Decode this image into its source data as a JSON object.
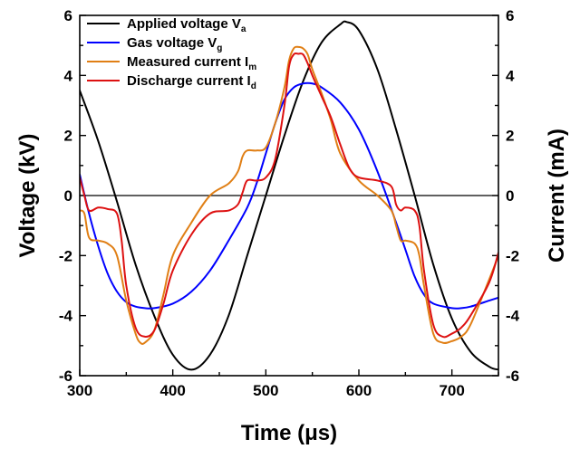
{
  "chart_data": {
    "type": "line",
    "xlabel": "Time (μs)",
    "ylabel_left": "Voltage (kV)",
    "ylabel_right": "Current (mA)",
    "xlim": [
      300,
      750
    ],
    "ylim_left": [
      -6,
      6
    ],
    "ylim_right": [
      -6,
      6
    ],
    "x_ticks": [
      300,
      400,
      500,
      600,
      700
    ],
    "y_ticks_left": [
      -6,
      -4,
      -2,
      0,
      2,
      4,
      6
    ],
    "y_ticks_right": [
      -6,
      -4,
      -2,
      0,
      2,
      4,
      6
    ],
    "zero_line": true,
    "legend_position": "top-left",
    "series": [
      {
        "name": "Applied voltage V",
        "subscript": "a",
        "color": "#000000",
        "axis": "left",
        "x": [
          300,
          320,
          340,
          360,
          380,
          400,
          420,
          440,
          460,
          480,
          500,
          520,
          540,
          560,
          580,
          587,
          600,
          620,
          640,
          660,
          680,
          700,
          720,
          740,
          750
        ],
        "y": [
          3.5,
          1.8,
          -0.2,
          -2.3,
          -4.0,
          -5.3,
          -5.8,
          -5.3,
          -4.0,
          -2.0,
          0.0,
          2.0,
          3.8,
          5.1,
          5.7,
          5.78,
          5.5,
          4.2,
          2.2,
          0.0,
          -2.3,
          -4.1,
          -5.2,
          -5.7,
          -5.8
        ]
      },
      {
        "name": "Gas voltage V",
        "subscript": "g",
        "color": "#0000ff",
        "axis": "left",
        "x": [
          300,
          310,
          320,
          330,
          340,
          350,
          360,
          370,
          380,
          400,
          420,
          440,
          460,
          480,
          490,
          500,
          510,
          520,
          530,
          540,
          550,
          560,
          580,
          600,
          620,
          640,
          650,
          660,
          670,
          680,
          700,
          710,
          720,
          740,
          750
        ],
        "y": [
          0.7,
          -0.6,
          -1.7,
          -2.6,
          -3.2,
          -3.55,
          -3.7,
          -3.75,
          -3.75,
          -3.6,
          -3.2,
          -2.5,
          -1.5,
          -0.4,
          0.4,
          1.4,
          2.4,
          3.2,
          3.6,
          3.73,
          3.73,
          3.6,
          3.1,
          2.2,
          0.8,
          -0.9,
          -1.8,
          -2.7,
          -3.3,
          -3.6,
          -3.75,
          -3.75,
          -3.7,
          -3.5,
          -3.4
        ]
      },
      {
        "name": "Measured current I",
        "subscript": "m",
        "color": "#e07f15",
        "axis": "right",
        "x": [
          300,
          305,
          310,
          320,
          330,
          340,
          350,
          360,
          365,
          370,
          380,
          390,
          400,
          420,
          440,
          460,
          470,
          475,
          480,
          490,
          500,
          510,
          520,
          525,
          530,
          535,
          540,
          545,
          550,
          560,
          570,
          580,
          600,
          620,
          635,
          640,
          645,
          650,
          660,
          665,
          670,
          680,
          690,
          700,
          710,
          720,
          740,
          750
        ],
        "y": [
          -0.5,
          -0.6,
          -1.4,
          -1.5,
          -1.6,
          -2.0,
          -3.5,
          -4.6,
          -4.9,
          -4.9,
          -4.5,
          -3.3,
          -2.0,
          -0.9,
          0.0,
          0.4,
          0.8,
          1.3,
          1.5,
          1.5,
          1.6,
          2.4,
          3.6,
          4.5,
          4.9,
          4.95,
          4.9,
          4.7,
          4.2,
          3.4,
          2.5,
          1.4,
          0.5,
          0.0,
          -0.5,
          -1.0,
          -1.5,
          -1.5,
          -1.6,
          -2.0,
          -3.0,
          -4.6,
          -4.9,
          -4.85,
          -4.7,
          -4.3,
          -2.8,
          -2.0
        ]
      },
      {
        "name": "Discharge current I",
        "subscript": "d",
        "color": "#dd1111",
        "axis": "right",
        "x": [
          300,
          305,
          310,
          320,
          330,
          340,
          345,
          350,
          360,
          370,
          380,
          390,
          400,
          420,
          440,
          460,
          470,
          475,
          480,
          490,
          500,
          510,
          520,
          525,
          530,
          535,
          540,
          545,
          550,
          560,
          570,
          580,
          590,
          600,
          620,
          635,
          640,
          645,
          650,
          660,
          665,
          670,
          680,
          690,
          700,
          710,
          720,
          740,
          750
        ],
        "y": [
          0.6,
          0.0,
          -0.5,
          -0.4,
          -0.45,
          -0.6,
          -1.5,
          -3.0,
          -4.4,
          -4.7,
          -4.5,
          -3.6,
          -2.5,
          -1.3,
          -0.6,
          -0.5,
          -0.3,
          0.1,
          0.5,
          0.5,
          0.6,
          1.2,
          3.0,
          4.3,
          4.7,
          4.72,
          4.7,
          4.4,
          4.0,
          3.3,
          2.6,
          1.7,
          0.9,
          0.6,
          0.5,
          0.3,
          -0.3,
          -0.5,
          -0.4,
          -0.5,
          -1.0,
          -2.5,
          -4.3,
          -4.7,
          -4.6,
          -4.4,
          -4.0,
          -2.9,
          -1.9
        ]
      }
    ]
  }
}
